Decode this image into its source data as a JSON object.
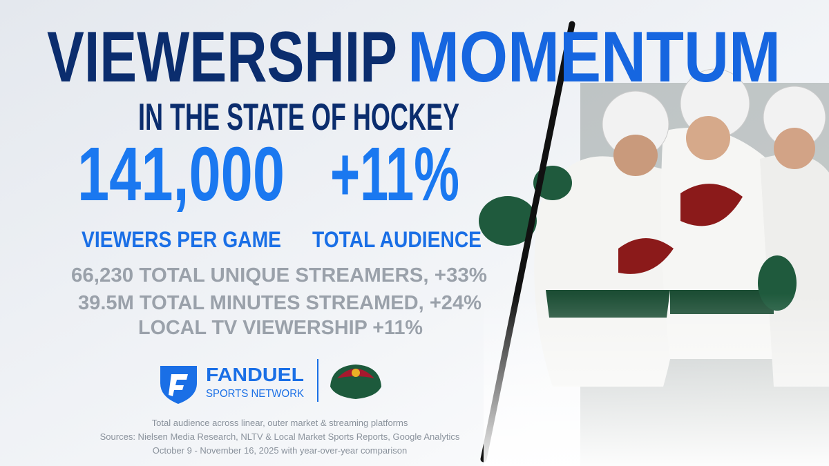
{
  "title": {
    "part1": "VIEWERSHIP",
    "part2": "MOMENTUM"
  },
  "subtitle": "IN THE STATE OF HOCKEY",
  "stats": [
    {
      "value": "141,000",
      "label": "VIEWERS PER GAME"
    },
    {
      "value": "+11%",
      "label": "TOTAL AUDIENCE"
    }
  ],
  "details": [
    "66,230 TOTAL UNIQUE STREAMERS, +33%",
    "39.5M TOTAL MINUTES STREAMED, +24%",
    "LOCAL TV VIEWERSHIP +11%"
  ],
  "logo": {
    "name": "FANDUEL",
    "subname": "SPORTS NETWORK"
  },
  "footnotes": [
    "Total audience across linear, outer market & streaming platforms",
    "Sources: Nielsen Media Research, NLTV & Local Market Sports Reports, Google Analytics",
    "October 9 - November 16, 2025 with year-over-year comparison"
  ]
}
